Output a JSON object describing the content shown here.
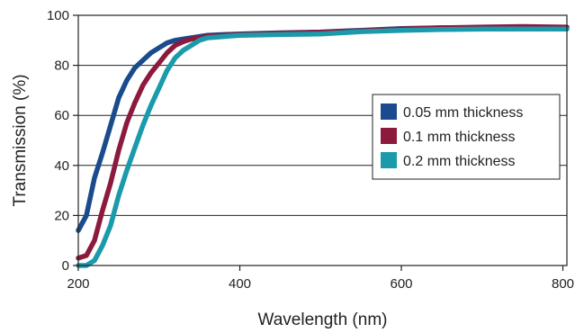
{
  "chart_data": {
    "type": "line",
    "title": "",
    "xlabel": "Wavelength (nm)",
    "ylabel": "Transmission (%)",
    "xlim": [
      200,
      805
    ],
    "ylim": [
      0,
      100
    ],
    "xticks": [
      200,
      400,
      600,
      800
    ],
    "yticks": [
      0,
      20,
      40,
      60,
      80,
      100
    ],
    "grid": "horizontal",
    "legend_position": "right-middle",
    "series": [
      {
        "name": "0.05 mm thickness",
        "color": "#1a4b8c",
        "points": [
          [
            200,
            14
          ],
          [
            210,
            20
          ],
          [
            220,
            35
          ],
          [
            230,
            45
          ],
          [
            240,
            56
          ],
          [
            250,
            67
          ],
          [
            260,
            74
          ],
          [
            270,
            79
          ],
          [
            280,
            82
          ],
          [
            290,
            85
          ],
          [
            300,
            87
          ],
          [
            310,
            89
          ],
          [
            320,
            90
          ],
          [
            330,
            90.5
          ],
          [
            340,
            91
          ],
          [
            350,
            91.5
          ],
          [
            360,
            92
          ],
          [
            380,
            92.3
          ],
          [
            400,
            92.5
          ],
          [
            450,
            93
          ],
          [
            500,
            93.3
          ],
          [
            550,
            94
          ],
          [
            600,
            94.7
          ],
          [
            650,
            95
          ],
          [
            700,
            95
          ],
          [
            750,
            95
          ],
          [
            800,
            95
          ],
          [
            805,
            95
          ]
        ]
      },
      {
        "name": "0.1 mm thickness",
        "color": "#8c1a3c",
        "points": [
          [
            200,
            3
          ],
          [
            210,
            4
          ],
          [
            220,
            10
          ],
          [
            230,
            22
          ],
          [
            240,
            33
          ],
          [
            250,
            46
          ],
          [
            260,
            57
          ],
          [
            270,
            65
          ],
          [
            280,
            72
          ],
          [
            290,
            77
          ],
          [
            300,
            81
          ],
          [
            310,
            85
          ],
          [
            320,
            88
          ],
          [
            330,
            89.5
          ],
          [
            340,
            90.5
          ],
          [
            350,
            91
          ],
          [
            360,
            91.5
          ],
          [
            380,
            92
          ],
          [
            400,
            92.3
          ],
          [
            450,
            92.8
          ],
          [
            500,
            93.2
          ],
          [
            550,
            93.8
          ],
          [
            600,
            94.5
          ],
          [
            650,
            95
          ],
          [
            700,
            95.3
          ],
          [
            750,
            95.5
          ],
          [
            800,
            95.3
          ],
          [
            805,
            95.3
          ]
        ]
      },
      {
        "name": "0.2 mm thickness",
        "color": "#1a9aaa",
        "points": [
          [
            200,
            0
          ],
          [
            210,
            0
          ],
          [
            220,
            2
          ],
          [
            230,
            8
          ],
          [
            240,
            16
          ],
          [
            250,
            28
          ],
          [
            260,
            38
          ],
          [
            270,
            47
          ],
          [
            280,
            56
          ],
          [
            290,
            64
          ],
          [
            300,
            71
          ],
          [
            310,
            78
          ],
          [
            320,
            83
          ],
          [
            330,
            86
          ],
          [
            340,
            88
          ],
          [
            350,
            90
          ],
          [
            360,
            91
          ],
          [
            380,
            91.5
          ],
          [
            400,
            92
          ],
          [
            450,
            92.3
          ],
          [
            500,
            92.5
          ],
          [
            550,
            93.5
          ],
          [
            600,
            94
          ],
          [
            650,
            94.3
          ],
          [
            700,
            94.5
          ],
          [
            750,
            94.5
          ],
          [
            800,
            94.5
          ],
          [
            805,
            94.5
          ]
        ]
      }
    ]
  }
}
